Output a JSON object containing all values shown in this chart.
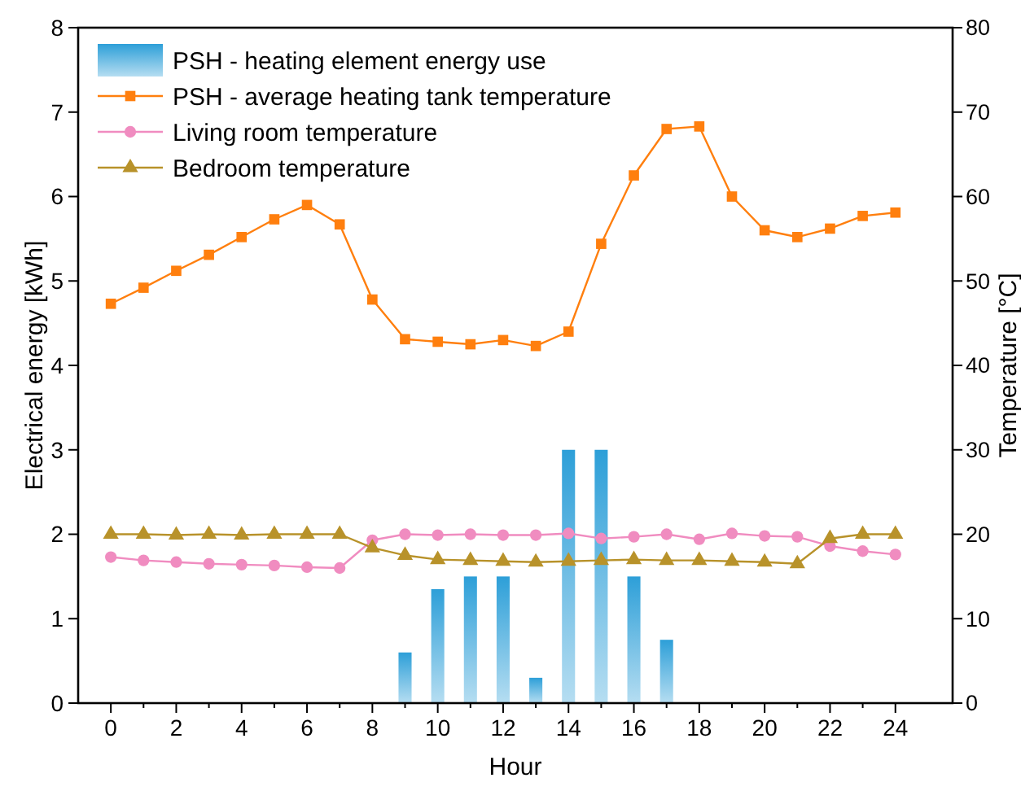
{
  "chart_data": {
    "type": "bar",
    "xlabel": "Hour",
    "ylabel": "Electrical energy [kWh]",
    "y2label": "Temperature [°C]",
    "x": [
      0,
      1,
      2,
      3,
      4,
      5,
      6,
      7,
      8,
      9,
      10,
      11,
      12,
      13,
      14,
      15,
      16,
      17,
      18,
      19,
      20,
      21,
      22,
      23,
      24
    ],
    "series": [
      {
        "name": "PSH - heating element energy use",
        "color": "#2d9fd8",
        "values": [
          null,
          null,
          null,
          null,
          null,
          null,
          null,
          null,
          null,
          0.6,
          1.35,
          1.5,
          1.5,
          0.3,
          3,
          3,
          1.5,
          0.75,
          null,
          null,
          null,
          null,
          null,
          null,
          null
        ]
      },
      {
        "name": "PSH - average heating tank temperature",
        "type": "line",
        "axis": "y2",
        "marker": "square",
        "color": "#ff7f0e",
        "values": [
          47.3,
          49.2,
          51.2,
          53.1,
          55.2,
          57.3,
          59.0,
          56.7,
          47.8,
          43.1,
          42.8,
          42.5,
          43.0,
          42.3,
          44.0,
          54.4,
          62.5,
          68.0,
          68.3,
          60.0,
          56.0,
          55.2,
          56.2,
          57.7,
          58.1
        ]
      },
      {
        "name": "Living room temperature",
        "type": "line",
        "axis": "y2",
        "marker": "circle",
        "color": "#f08cc0",
        "values": [
          17.3,
          16.9,
          16.7,
          16.5,
          16.4,
          16.3,
          16.1,
          16.0,
          19.3,
          20.0,
          19.9,
          20.0,
          19.9,
          19.9,
          20.1,
          19.5,
          19.7,
          20.0,
          19.4,
          20.1,
          19.8,
          19.7,
          18.6,
          18.0,
          17.6
        ]
      },
      {
        "name": "Bedroom temperature",
        "type": "line",
        "axis": "y2",
        "marker": "triangle",
        "color": "#b8922a",
        "values": [
          20,
          20,
          19.9,
          20,
          19.9,
          20,
          20,
          20,
          18.4,
          17.5,
          17.0,
          16.9,
          16.8,
          16.7,
          16.8,
          16.9,
          17.0,
          16.9,
          16.9,
          16.8,
          16.7,
          16.5,
          19.5,
          20,
          20
        ]
      }
    ],
    "xlim": [
      -1,
      25.75
    ],
    "xticks": [
      0,
      2,
      4,
      6,
      8,
      10,
      12,
      14,
      16,
      18,
      20,
      22,
      24
    ],
    "ylim": [
      0,
      8
    ],
    "yticks": [
      0,
      1,
      2,
      3,
      4,
      5,
      6,
      7,
      8
    ],
    "y2lim": [
      0,
      80
    ],
    "y2ticks": [
      0,
      10,
      20,
      30,
      40,
      50,
      60,
      70,
      80
    ],
    "legend": "top left",
    "grid": false
  }
}
